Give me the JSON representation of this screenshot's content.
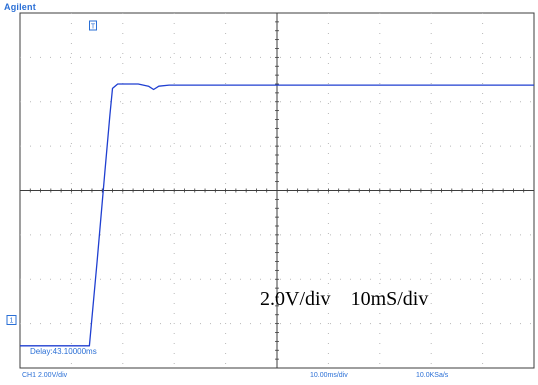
{
  "header": {
    "brand": "Agilent",
    "brand_color": "#2a6fd6"
  },
  "overlay": {
    "vertical_scale": "2.0V/div",
    "horizontal_scale": "10mS/div"
  },
  "screen": {
    "delay_label": "Delay:43.10000ms",
    "grid_color": "#b8b8b8",
    "axis_color": "#3c3c3c",
    "trigger_marker_label": "T",
    "channel_marker_label": "1"
  },
  "status_bar": {
    "ch1_scale": "CH1 2.00V/div",
    "timebase": "10.00ms/div",
    "sample_rate": "10.0KSa/s",
    "text_color": "#2a6fd6"
  },
  "chart_data": {
    "type": "line",
    "title": "",
    "xlabel": "",
    "ylabel": "",
    "grid": true,
    "xlim": [
      -50,
      50
    ],
    "ylim": [
      -8,
      8
    ],
    "series": [
      {
        "color": "#1f3fd1",
        "x": [
          -50,
          -37.2,
          -36.5,
          -35,
          -33.5,
          -32.5,
          -32,
          -31,
          -29,
          -27,
          -25,
          -24,
          -23,
          -21,
          -15,
          0,
          15,
          30,
          40,
          50
        ],
        "y": [
          -7.0,
          -7.0,
          -7.0,
          -3.2,
          0.8,
          3.4,
          4.6,
          4.8,
          4.8,
          4.8,
          4.7,
          4.55,
          4.7,
          4.75,
          4.75,
          4.75,
          4.75,
          4.75,
          4.75,
          4.75
        ]
      }
    ]
  }
}
